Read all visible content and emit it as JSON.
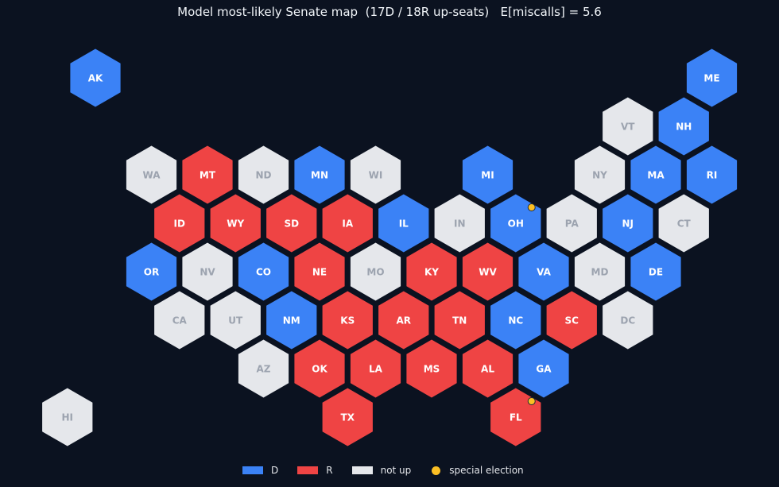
{
  "title": "Model most-likely Senate map  (17D / 18R up-seats)   E[miscalls] = 5.6",
  "colors": {
    "background": "#0b1220",
    "D": "#3b82f6",
    "R": "#ef4444",
    "N": "#e5e7eb",
    "label_on_color": "#ffffff",
    "label_not_up": "#9ca3af",
    "special": "#fbbf24"
  },
  "legend": [
    {
      "key": "D",
      "label": "D"
    },
    {
      "key": "R",
      "label": "R"
    },
    {
      "key": "N",
      "label": "not up"
    },
    {
      "key": "special",
      "label": "special election"
    }
  ],
  "states": [
    {
      "abbr": "AK",
      "status": "D",
      "row": 0,
      "col": 0
    },
    {
      "abbr": "ME",
      "status": "D",
      "row": 0,
      "col": 22
    },
    {
      "abbr": "VT",
      "status": "N",
      "row": 1,
      "col": 19
    },
    {
      "abbr": "NH",
      "status": "D",
      "row": 1,
      "col": 21
    },
    {
      "abbr": "WA",
      "status": "N",
      "row": 2,
      "col": 2
    },
    {
      "abbr": "MT",
      "status": "R",
      "row": 2,
      "col": 4
    },
    {
      "abbr": "ND",
      "status": "N",
      "row": 2,
      "col": 6
    },
    {
      "abbr": "MN",
      "status": "D",
      "row": 2,
      "col": 8
    },
    {
      "abbr": "WI",
      "status": "N",
      "row": 2,
      "col": 10
    },
    {
      "abbr": "MI",
      "status": "D",
      "row": 2,
      "col": 14
    },
    {
      "abbr": "NY",
      "status": "N",
      "row": 2,
      "col": 18
    },
    {
      "abbr": "MA",
      "status": "D",
      "row": 2,
      "col": 20
    },
    {
      "abbr": "RI",
      "status": "D",
      "row": 2,
      "col": 22
    },
    {
      "abbr": "ID",
      "status": "R",
      "row": 3,
      "col": 3
    },
    {
      "abbr": "WY",
      "status": "R",
      "row": 3,
      "col": 5
    },
    {
      "abbr": "SD",
      "status": "R",
      "row": 3,
      "col": 7
    },
    {
      "abbr": "IA",
      "status": "R",
      "row": 3,
      "col": 9
    },
    {
      "abbr": "IL",
      "status": "D",
      "row": 3,
      "col": 11
    },
    {
      "abbr": "IN",
      "status": "N",
      "row": 3,
      "col": 13
    },
    {
      "abbr": "OH",
      "status": "D",
      "row": 3,
      "col": 15,
      "special": true
    },
    {
      "abbr": "PA",
      "status": "N",
      "row": 3,
      "col": 17
    },
    {
      "abbr": "NJ",
      "status": "D",
      "row": 3,
      "col": 19
    },
    {
      "abbr": "CT",
      "status": "N",
      "row": 3,
      "col": 21
    },
    {
      "abbr": "OR",
      "status": "D",
      "row": 4,
      "col": 2
    },
    {
      "abbr": "NV",
      "status": "N",
      "row": 4,
      "col": 4
    },
    {
      "abbr": "CO",
      "status": "D",
      "row": 4,
      "col": 6
    },
    {
      "abbr": "NE",
      "status": "R",
      "row": 4,
      "col": 8
    },
    {
      "abbr": "MO",
      "status": "N",
      "row": 4,
      "col": 10
    },
    {
      "abbr": "KY",
      "status": "R",
      "row": 4,
      "col": 12
    },
    {
      "abbr": "WV",
      "status": "R",
      "row": 4,
      "col": 14
    },
    {
      "abbr": "VA",
      "status": "D",
      "row": 4,
      "col": 16
    },
    {
      "abbr": "MD",
      "status": "N",
      "row": 4,
      "col": 18
    },
    {
      "abbr": "DE",
      "status": "D",
      "row": 4,
      "col": 20
    },
    {
      "abbr": "CA",
      "status": "N",
      "row": 5,
      "col": 3
    },
    {
      "abbr": "UT",
      "status": "N",
      "row": 5,
      "col": 5
    },
    {
      "abbr": "NM",
      "status": "D",
      "row": 5,
      "col": 7
    },
    {
      "abbr": "KS",
      "status": "R",
      "row": 5,
      "col": 9
    },
    {
      "abbr": "AR",
      "status": "R",
      "row": 5,
      "col": 11
    },
    {
      "abbr": "TN",
      "status": "R",
      "row": 5,
      "col": 13
    },
    {
      "abbr": "NC",
      "status": "D",
      "row": 5,
      "col": 15
    },
    {
      "abbr": "SC",
      "status": "R",
      "row": 5,
      "col": 17
    },
    {
      "abbr": "DC",
      "status": "N",
      "row": 5,
      "col": 19
    },
    {
      "abbr": "AZ",
      "status": "N",
      "row": 6,
      "col": 6
    },
    {
      "abbr": "OK",
      "status": "R",
      "row": 6,
      "col": 8
    },
    {
      "abbr": "LA",
      "status": "R",
      "row": 6,
      "col": 10
    },
    {
      "abbr": "MS",
      "status": "R",
      "row": 6,
      "col": 12
    },
    {
      "abbr": "AL",
      "status": "R",
      "row": 6,
      "col": 14
    },
    {
      "abbr": "GA",
      "status": "D",
      "row": 6,
      "col": 16
    },
    {
      "abbr": "HI",
      "status": "N",
      "row": 7,
      "col": -1
    },
    {
      "abbr": "TX",
      "status": "R",
      "row": 7,
      "col": 9
    },
    {
      "abbr": "FL",
      "status": "R",
      "row": 7,
      "col": 15,
      "special": true
    }
  ]
}
